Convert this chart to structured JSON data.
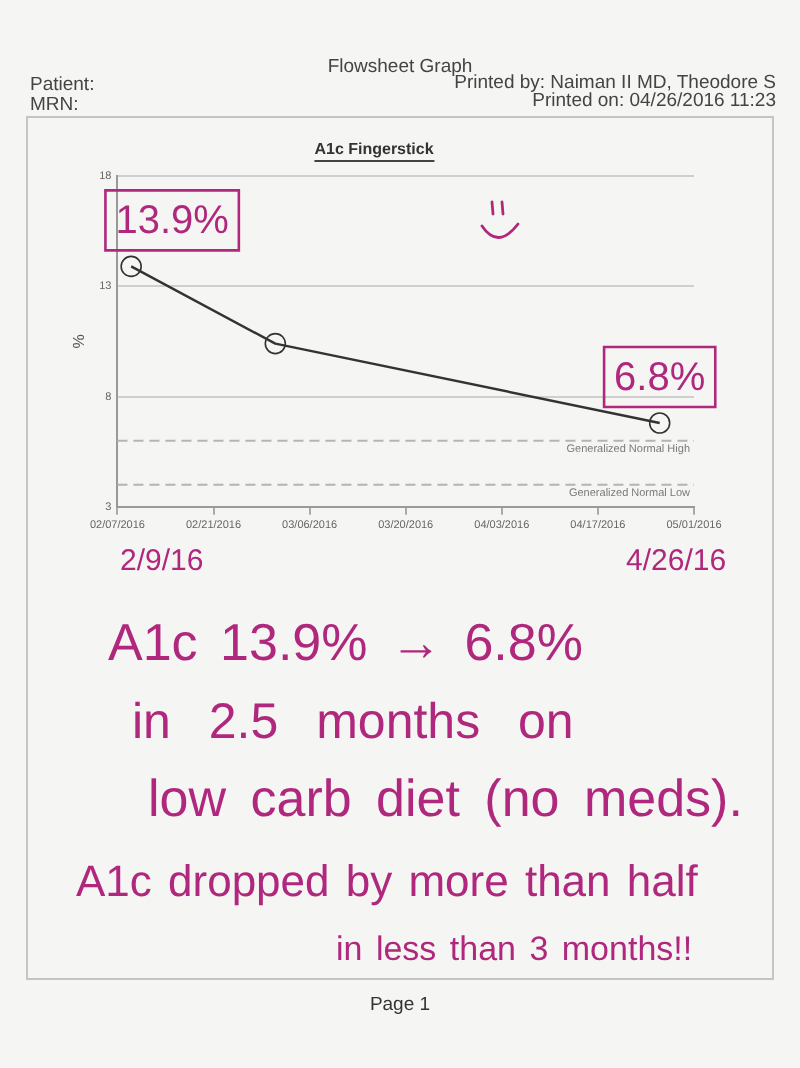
{
  "chart_data": {
    "type": "line",
    "title": "A1c Fingerstick",
    "ylabel": "%",
    "x": [
      "2016-02-09",
      "2016-03-01",
      "2016-04-26"
    ],
    "series": [
      {
        "color": "#333333",
        "values": [
          13.9,
          10.4,
          6.8
        ]
      }
    ],
    "xlim": [
      "2016-02-07",
      "2016-05-01"
    ],
    "xticks": [
      {
        "value": "2016-02-07",
        "label": "02/07/2016"
      },
      {
        "value": "2016-02-21",
        "label": "02/21/2016"
      },
      {
        "value": "2016-03-06",
        "label": "03/06/2016"
      },
      {
        "value": "2016-03-20",
        "label": "03/20/2016"
      },
      {
        "value": "2016-04-03",
        "label": "04/03/2016"
      },
      {
        "value": "2016-04-17",
        "label": "04/17/2016"
      },
      {
        "value": "2016-05-01",
        "label": "05/01/2016"
      }
    ],
    "ylim": [
      3,
      18
    ],
    "yticks": [
      3,
      8,
      13,
      18
    ],
    "ref_lines": [
      {
        "axis": "y",
        "value": 6,
        "label": "Generalized Normal High",
        "color": "#b4b4b4",
        "line_style": "dashed"
      },
      {
        "axis": "y",
        "value": 4,
        "label": "Generalized Normal Low",
        "color": "#b4b4b4",
        "line_style": "dashed"
      }
    ],
    "grid": "y",
    "marker": "circle",
    "line_style": "solid",
    "annotations": [
      "Flowsheet Graph",
      "Patient:",
      "Printed by: Naiman II MD, Theodore S",
      "MRN:",
      "Printed on: 04/26/2016 11:23",
      {
        "text": "13.9%",
        "x": "2016-02-09",
        "y": 13.9
      },
      {
        "text": "6.8%",
        "x": "2016-04-26",
        "y": 6.8
      },
      "2/9/16",
      "4/26/16",
      "A1c 13.9% → 6.8%",
      "in 2.5 months on",
      "low carb diet (no meds).",
      "A1c dropped by more than half",
      "in less than 3 months!!",
      "Page 1"
    ]
  }
}
